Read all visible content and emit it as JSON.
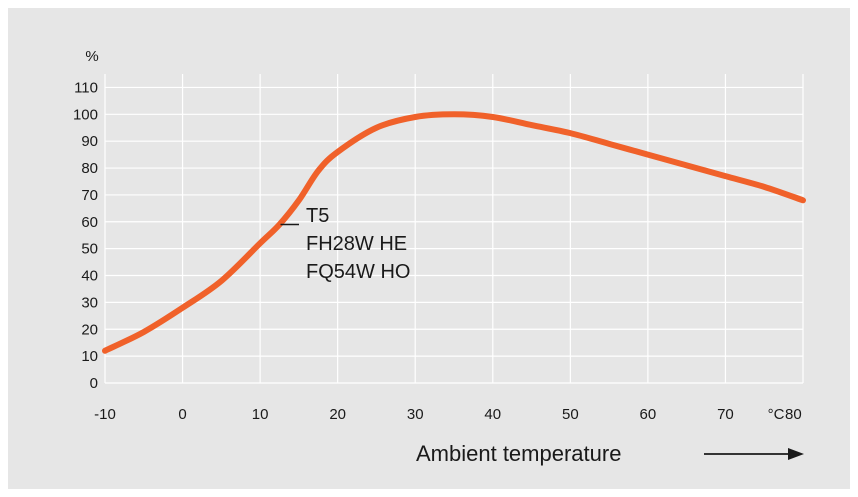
{
  "chart_data": {
    "type": "line",
    "title": "",
    "ylabel": "%",
    "xlabel": "Ambient temperature",
    "x_unit": "°C",
    "xlim": [
      -10,
      80
    ],
    "ylim": [
      0,
      110
    ],
    "grid": true,
    "x_ticks": [
      "-10",
      "0",
      "10",
      "20",
      "30",
      "40",
      "50",
      "60",
      "70",
      "80"
    ],
    "y_ticks": [
      "0",
      "10",
      "20",
      "30",
      "40",
      "50",
      "60",
      "70",
      "80",
      "90",
      "100",
      "110"
    ],
    "series": [
      {
        "x": [
          -10,
          -5,
          0,
          5,
          10,
          12.5,
          15,
          17.5,
          20,
          25,
          30,
          35,
          40,
          45,
          50,
          55,
          60,
          65,
          70,
          75,
          80
        ],
        "y": [
          12,
          19,
          28,
          38,
          52,
          59,
          68,
          79,
          86,
          95,
          99,
          100,
          99,
          96,
          93,
          89,
          85,
          81,
          77,
          73,
          68
        ],
        "color": "#f0612a"
      }
    ],
    "annotation": {
      "x": 12.5,
      "y": 59,
      "lines": [
        "T5",
        "FH28W HE",
        "FQ54W HO"
      ]
    }
  },
  "colors": {
    "panel_background": "#e6e6e6",
    "plot_background": "#e6e6e6",
    "grid": "#ffffff",
    "curve": "#f0612a",
    "text": "#1a1a1a"
  }
}
